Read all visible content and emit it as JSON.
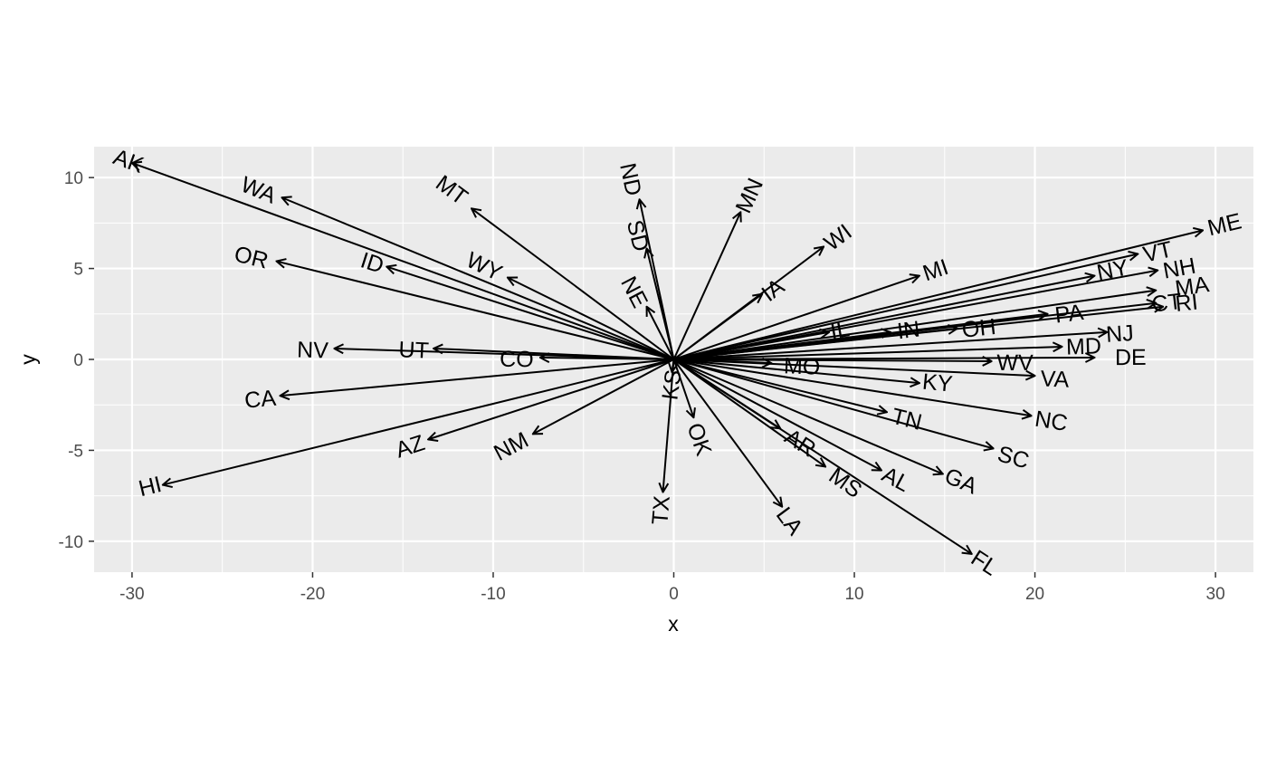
{
  "chart_data": {
    "type": "scatter",
    "subtype": "vector-arrows-from-origin",
    "title": "",
    "xlabel": "x",
    "ylabel": "y",
    "xlim": [
      -32.1,
      32.1
    ],
    "ylim": [
      -11.7,
      11.7
    ],
    "x_ticks": [
      -30,
      -20,
      -10,
      0,
      10,
      20,
      30
    ],
    "x_tick_labels": [
      "-30",
      "-20",
      "-10",
      "0",
      "10",
      "20",
      "30"
    ],
    "y_ticks": [
      -10,
      -5,
      0,
      5,
      10
    ],
    "y_tick_labels": [
      "-10",
      "-5",
      "0",
      "5",
      "10"
    ],
    "grid": true,
    "panel_background": "#ebebeb",
    "grid_color": "#ffffff",
    "arrow_color": "#000000",
    "origin": [
      0,
      0
    ],
    "vectors": [
      {
        "label": "AK",
        "x": -30.0,
        "y": 10.8,
        "label_x": -30.2,
        "label_y": 10.9
      },
      {
        "label": "WA",
        "x": -21.7,
        "y": 8.9,
        "label_x": -23.0,
        "label_y": 9.3
      },
      {
        "label": "MT",
        "x": -11.2,
        "y": 8.3,
        "label_x": -12.3,
        "label_y": 9.3
      },
      {
        "label": "OR",
        "x": -22.0,
        "y": 5.4,
        "label_x": -23.4,
        "label_y": 5.6
      },
      {
        "label": "ID",
        "x": -15.9,
        "y": 5.1,
        "label_x": -16.7,
        "label_y": 5.3
      },
      {
        "label": "WY",
        "x": -9.2,
        "y": 4.5,
        "label_x": -10.5,
        "label_y": 5.1
      },
      {
        "label": "NV",
        "x": -18.8,
        "y": 0.6,
        "label_x": -20.0,
        "label_y": 0.5
      },
      {
        "label": "UT",
        "x": -13.3,
        "y": 0.6,
        "label_x": -14.4,
        "label_y": 0.5
      },
      {
        "label": "CO",
        "x": -7.4,
        "y": 0.1,
        "label_x": -8.7,
        "label_y": 0.0
      },
      {
        "label": "CA",
        "x": -21.8,
        "y": -2.0,
        "label_x": -22.9,
        "label_y": -2.2
      },
      {
        "label": "AZ",
        "x": -13.6,
        "y": -4.4,
        "label_x": -14.6,
        "label_y": -4.8
      },
      {
        "label": "NM",
        "x": -7.8,
        "y": -4.1,
        "label_x": -9.0,
        "label_y": -4.8
      },
      {
        "label": "HI",
        "x": -28.3,
        "y": -6.9,
        "label_x": -29.0,
        "label_y": -7.0
      },
      {
        "label": "ND",
        "x": -1.9,
        "y": 8.8,
        "label_x": -2.4,
        "label_y": 9.9
      },
      {
        "label": "SD",
        "x": -1.5,
        "y": 6.1,
        "label_x": -2.0,
        "label_y": 6.8
      },
      {
        "label": "NE",
        "x": -1.5,
        "y": 2.9,
        "label_x": -2.2,
        "label_y": 3.7
      },
      {
        "label": "KS",
        "x": -0.1,
        "y": -0.7,
        "label_x": -0.1,
        "label_y": -1.4
      },
      {
        "label": "TX",
        "x": -0.6,
        "y": -7.3,
        "label_x": -0.7,
        "label_y": -8.3
      },
      {
        "label": "OK",
        "x": 1.1,
        "y": -3.2,
        "label_x": 1.4,
        "label_y": -4.4
      },
      {
        "label": "MN",
        "x": 3.7,
        "y": 8.1,
        "label_x": 4.2,
        "label_y": 9.0
      },
      {
        "label": "IA",
        "x": 4.9,
        "y": 3.6,
        "label_x": 5.5,
        "label_y": 3.8
      },
      {
        "label": "WI",
        "x": 8.3,
        "y": 6.2,
        "label_x": 9.1,
        "label_y": 6.7
      },
      {
        "label": "MI",
        "x": 13.6,
        "y": 4.6,
        "label_x": 14.5,
        "label_y": 4.9
      },
      {
        "label": "IL",
        "x": 8.6,
        "y": 1.5,
        "label_x": 9.2,
        "label_y": 1.6
      },
      {
        "label": "IN",
        "x": 12.0,
        "y": 1.5,
        "label_x": 13.0,
        "label_y": 1.6
      },
      {
        "label": "OH",
        "x": 15.7,
        "y": 1.7,
        "label_x": 16.9,
        "label_y": 1.7
      },
      {
        "label": "PA",
        "x": 20.7,
        "y": 2.5,
        "label_x": 21.9,
        "label_y": 2.5
      },
      {
        "label": "NY",
        "x": 23.3,
        "y": 4.6,
        "label_x": 24.3,
        "label_y": 4.9
      },
      {
        "label": "VT",
        "x": 25.7,
        "y": 5.8,
        "label_x": 26.8,
        "label_y": 5.9
      },
      {
        "label": "NH",
        "x": 26.8,
        "y": 4.9,
        "label_x": 28.0,
        "label_y": 5.0
      },
      {
        "label": "ME",
        "x": 29.3,
        "y": 7.1,
        "label_x": 30.5,
        "label_y": 7.4
      },
      {
        "label": "MA",
        "x": 26.7,
        "y": 3.8,
        "label_x": 28.7,
        "label_y": 4.0
      },
      {
        "label": "CT",
        "x": 26.7,
        "y": 3.1,
        "label_x": 27.3,
        "label_y": 3.1
      },
      {
        "label": "RI",
        "x": 27.1,
        "y": 2.9,
        "label_x": 28.4,
        "label_y": 3.1
      },
      {
        "label": "NJ",
        "x": 24.0,
        "y": 1.5,
        "label_x": 24.7,
        "label_y": 1.4
      },
      {
        "label": "MD",
        "x": 21.5,
        "y": 0.7,
        "label_x": 22.7,
        "label_y": 0.7
      },
      {
        "label": "DE",
        "x": 23.3,
        "y": 0.1,
        "label_x": 25.3,
        "label_y": 0.1
      },
      {
        "label": "WV",
        "x": 17.6,
        "y": -0.1,
        "label_x": 18.9,
        "label_y": -0.2
      },
      {
        "label": "VA",
        "x": 20.0,
        "y": -0.9,
        "label_x": 21.1,
        "label_y": -1.1
      },
      {
        "label": "MO",
        "x": 5.4,
        "y": -0.2,
        "label_x": 7.1,
        "label_y": -0.4
      },
      {
        "label": "KY",
        "x": 13.6,
        "y": -1.3,
        "label_x": 14.6,
        "label_y": -1.3
      },
      {
        "label": "TN",
        "x": 11.8,
        "y": -2.9,
        "label_x": 12.9,
        "label_y": -3.3
      },
      {
        "label": "NC",
        "x": 19.8,
        "y": -3.1,
        "label_x": 20.9,
        "label_y": -3.4
      },
      {
        "label": "SC",
        "x": 17.7,
        "y": -4.9,
        "label_x": 18.8,
        "label_y": -5.4
      },
      {
        "label": "AR",
        "x": 5.9,
        "y": -3.8,
        "label_x": 7.0,
        "label_y": -4.6
      },
      {
        "label": "MS",
        "x": 8.4,
        "y": -5.9,
        "label_x": 9.5,
        "label_y": -6.8
      },
      {
        "label": "AL",
        "x": 11.5,
        "y": -6.1,
        "label_x": 12.3,
        "label_y": -6.6
      },
      {
        "label": "GA",
        "x": 14.9,
        "y": -6.3,
        "label_x": 15.9,
        "label_y": -6.7
      },
      {
        "label": "LA",
        "x": 6.0,
        "y": -8.1,
        "label_x": 6.4,
        "label_y": -8.9
      },
      {
        "label": "FL",
        "x": 16.5,
        "y": -10.7,
        "label_x": 17.2,
        "label_y": -11.2
      }
    ]
  }
}
